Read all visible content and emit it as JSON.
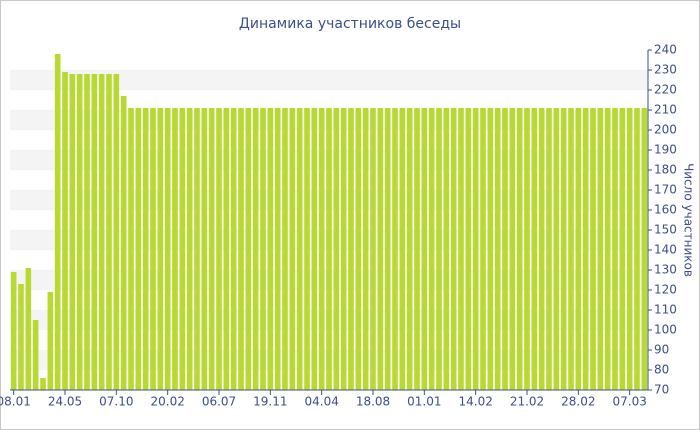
{
  "chart_data": {
    "type": "bar",
    "title": "Динамика участников беседы",
    "y_label": "Число участников",
    "categories": [
      "08.01",
      null,
      null,
      null,
      null,
      null,
      null,
      "24.05",
      null,
      null,
      null,
      null,
      null,
      null,
      "07.10",
      null,
      null,
      null,
      null,
      null,
      null,
      "20.02",
      null,
      null,
      null,
      null,
      null,
      null,
      "06.07",
      null,
      null,
      null,
      null,
      null,
      null,
      "19.11",
      null,
      null,
      null,
      null,
      null,
      null,
      "04.04",
      null,
      null,
      null,
      null,
      null,
      null,
      "18.08",
      null,
      null,
      null,
      null,
      null,
      null,
      "01.01",
      null,
      null,
      null,
      null,
      null,
      null,
      "14.02",
      null,
      null,
      null,
      null,
      null,
      null,
      "21.02",
      null,
      null,
      null,
      null,
      null,
      null,
      "28.02",
      null,
      null,
      null,
      null,
      null,
      null,
      "07.03",
      null,
      null
    ],
    "values": [
      129,
      123,
      131,
      105,
      76,
      119,
      238,
      229,
      228,
      228,
      228,
      228,
      228,
      228,
      228,
      217,
      211,
      211,
      211,
      211,
      211,
      211,
      211,
      211,
      211,
      211,
      211,
      211,
      211,
      211,
      211,
      211,
      211,
      211,
      211,
      211,
      211,
      211,
      211,
      211,
      211,
      211,
      211,
      211,
      211,
      211,
      211,
      211,
      211,
      211,
      211,
      211,
      211,
      211,
      211,
      211,
      211,
      211,
      211,
      211,
      211,
      211,
      211,
      211,
      211,
      211,
      211,
      211,
      211,
      211,
      211,
      211,
      211,
      211,
      211,
      211,
      211,
      211,
      211,
      211,
      211,
      211,
      211,
      211,
      211,
      211,
      211
    ],
    "color": "#b8d930",
    "ylim": [
      70,
      240
    ],
    "yticks": [
      70,
      80,
      90,
      100,
      110,
      120,
      130,
      140,
      150,
      160,
      170,
      180,
      190,
      200,
      210,
      220,
      230,
      240
    ],
    "grid": true,
    "y_axis_side": "right"
  }
}
